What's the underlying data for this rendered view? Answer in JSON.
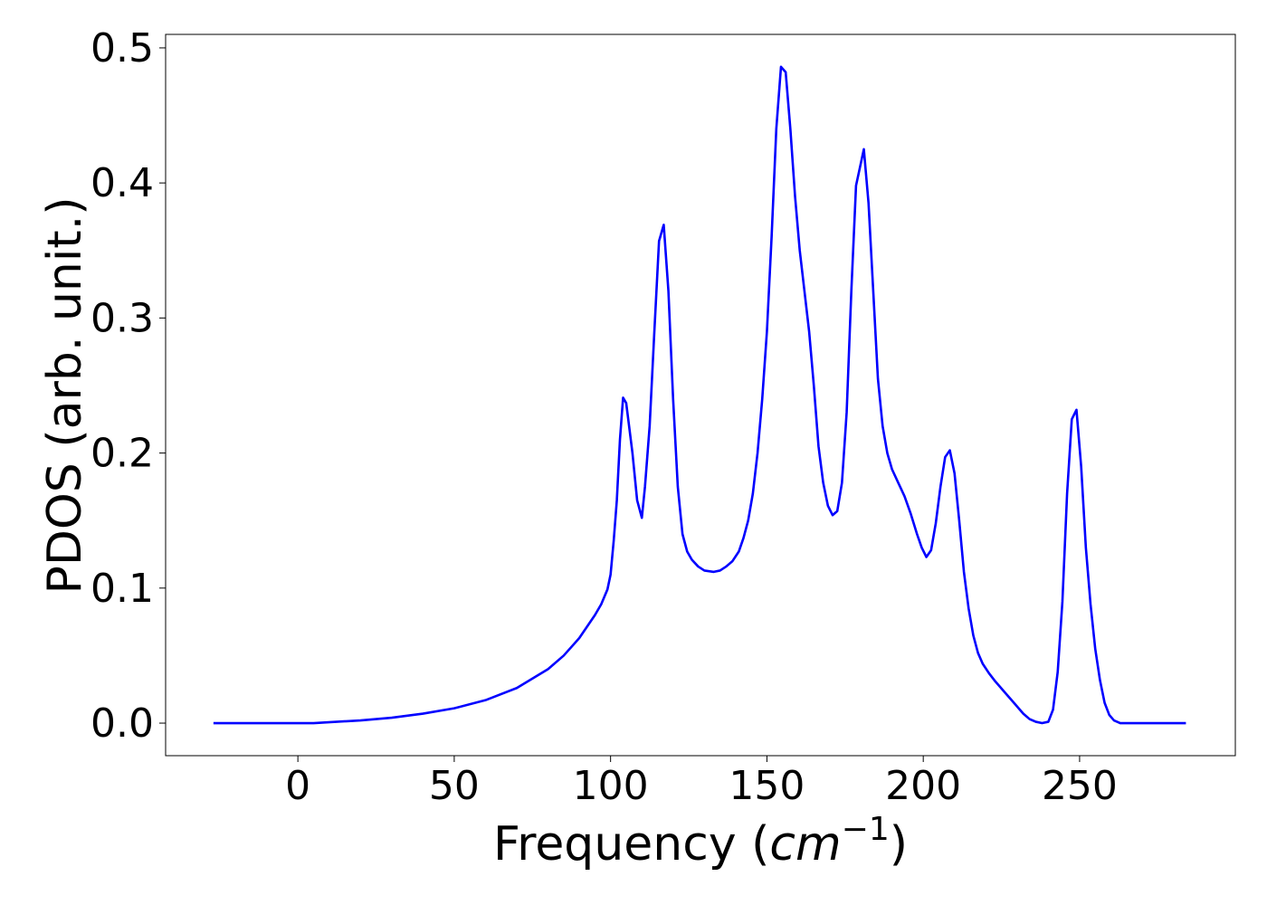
{
  "chart_data": {
    "type": "line",
    "ylabel": "PDOS (arb. unit.)",
    "xlabel": [
      "Frequency (",
      "cm",
      "−1",
      ")"
    ],
    "x": [
      -27,
      0,
      5,
      20,
      30,
      40,
      50,
      60,
      70,
      80,
      85,
      90,
      95,
      97,
      99,
      100,
      101,
      102,
      103,
      104,
      105,
      107,
      108.5,
      110,
      111,
      112.5,
      114,
      115.5,
      117,
      118.5,
      120,
      121.5,
      123,
      124.5,
      126,
      128,
      130,
      133,
      135,
      137,
      139,
      141,
      142.5,
      144,
      145.5,
      147,
      148.5,
      150,
      151.5,
      153,
      154.5,
      156,
      157.5,
      159,
      160.5,
      162,
      163.5,
      165,
      166.5,
      168,
      169.5,
      171,
      172.5,
      174,
      175.5,
      177,
      178.5,
      181,
      182.5,
      184,
      185.5,
      187,
      188.5,
      190,
      192,
      194,
      196,
      198,
      199.5,
      201,
      202.5,
      204,
      205.5,
      207,
      208.5,
      210,
      211.5,
      213,
      214.5,
      216,
      217.5,
      219,
      221,
      223,
      226,
      229,
      232,
      234,
      236,
      238,
      240,
      241.5,
      243,
      244.5,
      246,
      247.5,
      249,
      250.5,
      252,
      253.5,
      255,
      256.5,
      258,
      259.5,
      261,
      263,
      284
    ],
    "series": [
      {
        "color": "#0000ff",
        "values": [
          0,
          0,
          0,
          0.002,
          0.004,
          0.007,
          0.011,
          0.017,
          0.026,
          0.04,
          0.05,
          0.063,
          0.08,
          0.088,
          0.099,
          0.11,
          0.135,
          0.165,
          0.21,
          0.241,
          0.237,
          0.2,
          0.165,
          0.152,
          0.175,
          0.22,
          0.29,
          0.357,
          0.369,
          0.32,
          0.24,
          0.175,
          0.14,
          0.127,
          0.121,
          0.116,
          0.113,
          0.112,
          0.113,
          0.116,
          0.12,
          0.127,
          0.137,
          0.15,
          0.17,
          0.2,
          0.24,
          0.29,
          0.36,
          0.44,
          0.486,
          0.482,
          0.44,
          0.39,
          0.35,
          0.32,
          0.29,
          0.25,
          0.205,
          0.178,
          0.161,
          0.154,
          0.157,
          0.178,
          0.23,
          0.32,
          0.398,
          0.425,
          0.385,
          0.32,
          0.255,
          0.22,
          0.2,
          0.188,
          0.178,
          0.168,
          0.155,
          0.14,
          0.13,
          0.123,
          0.128,
          0.148,
          0.175,
          0.197,
          0.202,
          0.185,
          0.15,
          0.112,
          0.085,
          0.065,
          0.052,
          0.044,
          0.037,
          0.031,
          0.023,
          0.015,
          0.007,
          0.003,
          0.001,
          0,
          0.001,
          0.01,
          0.038,
          0.09,
          0.17,
          0.225,
          0.232,
          0.19,
          0.13,
          0.088,
          0.055,
          0.032,
          0.015,
          0.006,
          0.002,
          0,
          0
        ]
      }
    ],
    "xlim": [
      -42.3,
      299.8
    ],
    "ylim": [
      -0.0241,
      0.51
    ],
    "xticks": [
      0,
      50,
      100,
      150,
      200,
      250
    ],
    "yticks": [
      {
        "value": 0,
        "label": "0.0"
      },
      0.1,
      0.2,
      0.3,
      0.4,
      0.5
    ],
    "grid": false
  }
}
